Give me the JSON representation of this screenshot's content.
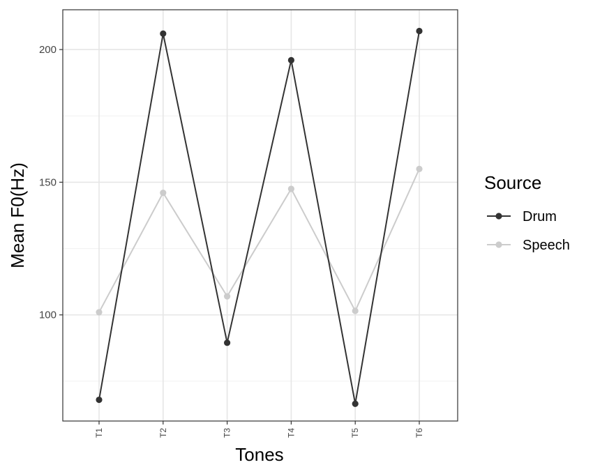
{
  "chart_data": {
    "type": "line",
    "title": "",
    "xlabel": "Tones",
    "ylabel": "Mean F0(Hz)",
    "categories": [
      "T1",
      "T2",
      "T3",
      "T4",
      "T5",
      "T6"
    ],
    "yticks": [
      "100",
      "150",
      "200"
    ],
    "ylim": [
      60,
      215
    ],
    "grid": true,
    "legend": {
      "title": "Source",
      "position": "right"
    },
    "series": [
      {
        "name": "Drum",
        "color": "#333333",
        "values": [
          68,
          206,
          89.5,
          196,
          66.5,
          207
        ]
      },
      {
        "name": "Speech",
        "color": "#cccccc",
        "values": [
          101,
          146,
          107,
          147.5,
          101.5,
          155
        ]
      }
    ]
  }
}
